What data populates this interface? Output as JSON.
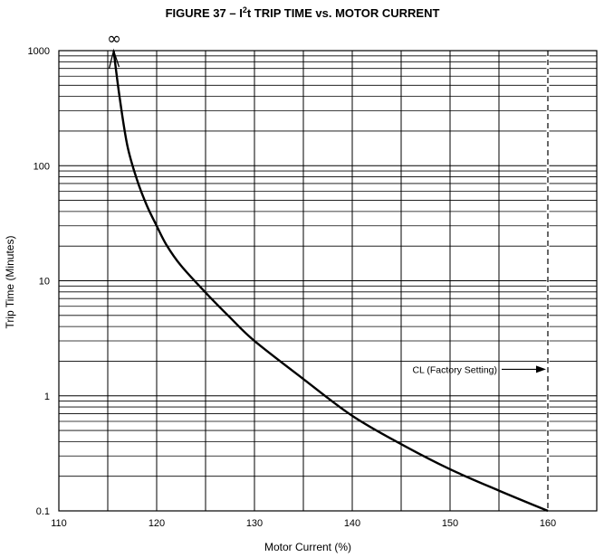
{
  "chart_data": {
    "type": "line",
    "title": {
      "prefix": "FIGURE 37 – I",
      "superscript": "2",
      "suffix": "t TRIP TIME vs. MOTOR CURRENT"
    },
    "xlabel": "Motor Current (%)",
    "ylabel": "Trip Time (Minutes)",
    "xlim": [
      110,
      165
    ],
    "ylim": [
      0.1,
      1000
    ],
    "yscale": "log",
    "x_ticks": [
      110,
      120,
      130,
      140,
      150,
      160
    ],
    "x_tick_labels": [
      "110",
      "120",
      "130",
      "140",
      "150",
      "160"
    ],
    "y_ticks": [
      0.1,
      1,
      10,
      100,
      1000
    ],
    "y_tick_labels": [
      "0.1",
      "1",
      "10",
      "100",
      "1000"
    ],
    "grid": true,
    "series": [
      {
        "points": [
          {
            "x": 115.6,
            "y": 1000
          },
          {
            "x": 116.2,
            "y": 400
          },
          {
            "x": 117.0,
            "y": 150
          },
          {
            "x": 118.0,
            "y": 75
          },
          {
            "x": 119.0,
            "y": 45
          },
          {
            "x": 120.0,
            "y": 30
          },
          {
            "x": 121.0,
            "y": 20.5
          },
          {
            "x": 122.5,
            "y": 13.5
          },
          {
            "x": 125.0,
            "y": 7.9
          },
          {
            "x": 127.5,
            "y": 4.8
          },
          {
            "x": 130.0,
            "y": 3.0
          },
          {
            "x": 135.0,
            "y": 1.4
          },
          {
            "x": 140.0,
            "y": 0.67
          },
          {
            "x": 145.0,
            "y": 0.38
          },
          {
            "x": 150.0,
            "y": 0.23
          },
          {
            "x": 155.0,
            "y": 0.15
          },
          {
            "x": 160.0,
            "y": 0.1
          }
        ]
      }
    ],
    "annotations": {
      "infinity_symbol": "∞",
      "cl_label": "CL (Factory Setting)",
      "cl_x": 160,
      "cl_arrow_y": 1.7
    }
  }
}
